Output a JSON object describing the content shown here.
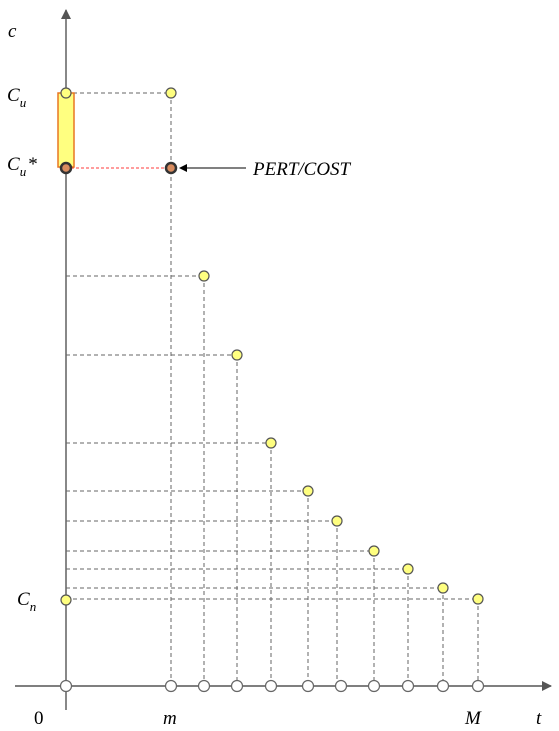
{
  "labels": {
    "y_axis": "c",
    "x_axis": "t",
    "origin": "0",
    "cu_main": "C",
    "cu_sub": "u",
    "cu_star_main": "C",
    "cu_star_sub": "u",
    "cu_star_mark": "*",
    "cn_main": "C",
    "cn_sub": "n",
    "m_label": "m",
    "M_label": "M",
    "pert_cost": "PERT/COST"
  },
  "colors": {
    "highlight_bar": "#ffff80",
    "highlight_bar_border": "#e87722",
    "points_fill": "#ffff80",
    "red_dash": "#ff3b3b",
    "axis": "#555555"
  }
}
